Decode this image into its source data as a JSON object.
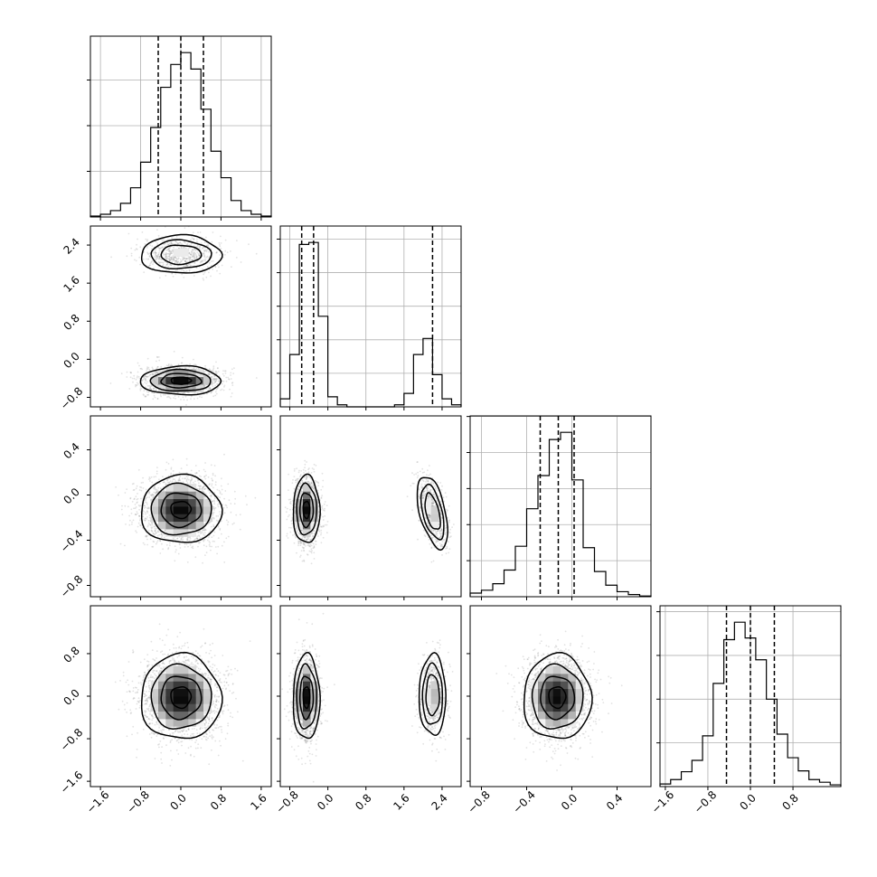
{
  "chart_data": {
    "type": "corner",
    "title": "",
    "n_params": 4,
    "params": [
      {
        "range": [
          -1.8,
          1.8
        ],
        "ticks": [
          -1.6,
          -0.8,
          0.0,
          0.8,
          1.6
        ],
        "tick_labels": [
          "−1.6",
          "−0.8",
          "0.0",
          "0.8",
          "1.6"
        ],
        "quantiles": [
          -0.45,
          0.0,
          0.45
        ]
      },
      {
        "range": [
          -1.0,
          2.8
        ],
        "ticks": [
          -0.8,
          0.0,
          0.8,
          1.6,
          2.4
        ],
        "tick_labels": [
          "−0.8",
          "0.0",
          "0.8",
          "1.6",
          "2.4"
        ],
        "quantiles": [
          -0.55,
          -0.3,
          2.2
        ]
      },
      {
        "range": [
          -0.9,
          0.7
        ],
        "ticks": [
          -0.8,
          -0.4,
          0.0,
          0.4
        ],
        "tick_labels": [
          "−0.8",
          "−0.4",
          "0.0",
          "0.4"
        ],
        "quantiles": [
          -0.28,
          -0.12,
          0.02
        ]
      },
      {
        "range": [
          -1.7,
          1.7
        ],
        "ticks": [
          -1.6,
          -0.8,
          0.0,
          0.8
        ],
        "tick_labels": [
          "−1.6",
          "−0.8",
          "0.0",
          "0.8"
        ],
        "quantiles": [
          -0.45,
          0.0,
          0.45
        ]
      }
    ],
    "histograms": [
      {
        "param": 0,
        "bins": [
          -1.8,
          -1.6,
          -1.4,
          -1.2,
          -1.0,
          -0.8,
          -0.6,
          -0.4,
          -0.2,
          0.0,
          0.2,
          0.4,
          0.6,
          0.8,
          1.0,
          1.2,
          1.4,
          1.6,
          1.8
        ],
        "counts": [
          1,
          3,
          7,
          15,
          32,
          60,
          98,
          142,
          167,
          180,
          162,
          118,
          72,
          43,
          18,
          7,
          3,
          1
        ]
      },
      {
        "param": 1,
        "bins": [
          -1.0,
          -0.8,
          -0.6,
          -0.4,
          -0.2,
          0.0,
          0.2,
          0.4,
          0.6,
          0.8,
          1.0,
          1.2,
          1.4,
          1.6,
          1.8,
          2.0,
          2.2,
          2.4,
          2.6,
          2.8
        ],
        "counts": [
          12,
          78,
          242,
          245,
          135,
          15,
          3,
          0,
          0,
          0,
          0,
          0,
          3,
          20,
          78,
          102,
          48,
          12,
          3
        ]
      },
      {
        "param": 2,
        "bins": [
          -0.9,
          -0.8,
          -0.7,
          -0.6,
          -0.5,
          -0.4,
          -0.3,
          -0.2,
          -0.1,
          0.0,
          0.1,
          0.2,
          0.3,
          0.4,
          0.5,
          0.6,
          0.7
        ],
        "counts": [
          5,
          9,
          18,
          37,
          70,
          122,
          168,
          218,
          228,
          162,
          68,
          35,
          16,
          7,
          3,
          1
        ]
      },
      {
        "param": 3,
        "bins": [
          -1.7,
          -1.5,
          -1.3,
          -1.1,
          -0.9,
          -0.7,
          -0.5,
          -0.3,
          -0.1,
          0.1,
          0.3,
          0.5,
          0.7,
          0.9,
          1.1,
          1.3,
          1.5,
          1.7
        ],
        "counts": [
          3,
          8,
          17,
          30,
          58,
          118,
          168,
          188,
          170,
          145,
          100,
          60,
          33,
          18,
          8,
          5,
          2
        ]
      }
    ],
    "pairs": [
      {
        "x_param": 0,
        "y_param": 1,
        "modes": [
          {
            "cx": 0.0,
            "cy": 2.2,
            "sx": 0.4,
            "sy": 0.2,
            "rho": 0.0,
            "weight": 0.32
          },
          {
            "cx": 0.0,
            "cy": -0.45,
            "sx": 0.4,
            "sy": 0.15,
            "rho": 0.0,
            "weight": 0.68
          }
        ]
      },
      {
        "x_param": 0,
        "y_param": 2,
        "modes": [
          {
            "cx": 0.0,
            "cy": -0.13,
            "sx": 0.4,
            "sy": 0.15,
            "rho": 0.0,
            "weight": 1.0
          }
        ]
      },
      {
        "x_param": 1,
        "y_param": 2,
        "modes": [
          {
            "cx": -0.45,
            "cy": -0.13,
            "sx": 0.14,
            "sy": 0.15,
            "rho": 0.0,
            "weight": 0.68
          },
          {
            "cx": 2.2,
            "cy": -0.15,
            "sx": 0.16,
            "sy": 0.16,
            "rho": -0.5,
            "weight": 0.32
          }
        ]
      },
      {
        "x_param": 0,
        "y_param": 3,
        "modes": [
          {
            "cx": 0.0,
            "cy": -0.02,
            "sx": 0.4,
            "sy": 0.4,
            "rho": 0.0,
            "weight": 1.0
          }
        ]
      },
      {
        "x_param": 1,
        "y_param": 3,
        "modes": [
          {
            "cx": -0.45,
            "cy": -0.02,
            "sx": 0.14,
            "sy": 0.4,
            "rho": 0.0,
            "weight": 0.68
          },
          {
            "cx": 2.2,
            "cy": 0.02,
            "sx": 0.14,
            "sy": 0.38,
            "rho": 0.0,
            "weight": 0.32
          }
        ]
      },
      {
        "x_param": 2,
        "y_param": 3,
        "modes": [
          {
            "cx": -0.13,
            "cy": -0.02,
            "sx": 0.15,
            "sy": 0.4,
            "rho": 0.0,
            "weight": 1.0
          }
        ]
      }
    ],
    "contour_sigmas": [
      0.5,
      1.0,
      1.5,
      2.0
    ],
    "grid": true,
    "legend": "none"
  }
}
